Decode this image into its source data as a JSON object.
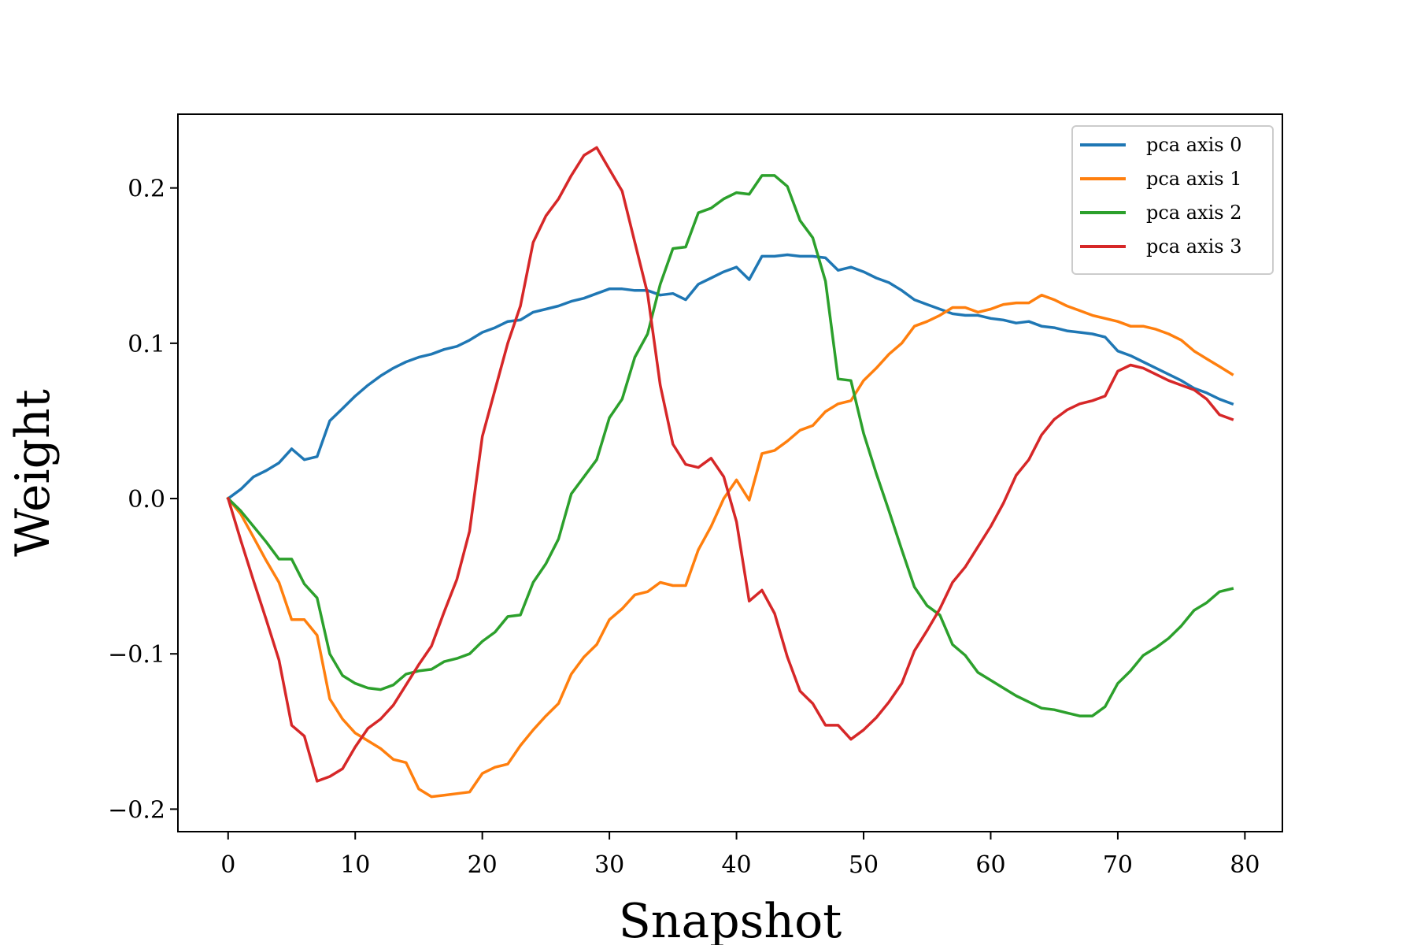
{
  "chart_data": {
    "type": "line",
    "title": "",
    "xlabel": "Snapshot",
    "ylabel": "Weight",
    "xlim": [
      -3.95,
      82.95
    ],
    "ylim": [
      -0.2145,
      0.2475
    ],
    "xticks": [
      0,
      10,
      20,
      30,
      40,
      50,
      60,
      70,
      80
    ],
    "yticks": [
      -0.2,
      -0.1,
      0.0,
      0.1,
      0.2
    ],
    "xtick_labels": [
      "0",
      "10",
      "20",
      "30",
      "40",
      "50",
      "60",
      "70",
      "80"
    ],
    "ytick_labels": [
      "−0.2",
      "−0.1",
      "0.0",
      "0.1",
      "0.2"
    ],
    "grid": false,
    "legend_position": "upper right",
    "x": [
      0,
      1,
      2,
      3,
      4,
      5,
      6,
      7,
      8,
      9,
      10,
      11,
      12,
      13,
      14,
      15,
      16,
      17,
      18,
      19,
      20,
      21,
      22,
      23,
      24,
      25,
      26,
      27,
      28,
      29,
      30,
      31,
      32,
      33,
      34,
      35,
      36,
      37,
      38,
      39,
      40,
      41,
      42,
      43,
      44,
      45,
      46,
      47,
      48,
      49,
      50,
      51,
      52,
      53,
      54,
      55,
      56,
      57,
      58,
      59,
      60,
      61,
      62,
      63,
      64,
      65,
      66,
      67,
      68,
      69,
      70,
      71,
      72,
      73,
      74,
      75,
      76,
      77,
      78,
      79
    ],
    "series": [
      {
        "name": "pca axis 0",
        "color": "#1f77b4",
        "values": [
          0.0,
          0.006,
          0.014,
          0.018,
          0.023,
          0.032,
          0.025,
          0.027,
          0.05,
          0.058,
          0.066,
          0.073,
          0.079,
          0.084,
          0.088,
          0.091,
          0.093,
          0.096,
          0.098,
          0.102,
          0.107,
          0.11,
          0.114,
          0.115,
          0.12,
          0.122,
          0.124,
          0.127,
          0.129,
          0.132,
          0.135,
          0.135,
          0.134,
          0.134,
          0.131,
          0.132,
          0.128,
          0.138,
          0.142,
          0.146,
          0.149,
          0.141,
          0.156,
          0.156,
          0.157,
          0.156,
          0.156,
          0.155,
          0.147,
          0.149,
          0.146,
          0.142,
          0.139,
          0.134,
          0.128,
          0.125,
          0.122,
          0.119,
          0.118,
          0.118,
          0.116,
          0.115,
          0.113,
          0.114,
          0.111,
          0.11,
          0.108,
          0.107,
          0.106,
          0.104,
          0.095,
          0.092,
          0.088,
          0.084,
          0.08,
          0.076,
          0.071,
          0.068,
          0.064,
          0.061
        ]
      },
      {
        "name": "pca axis 1",
        "color": "#ff7f0e",
        "values": [
          0.0,
          -0.01,
          -0.025,
          -0.04,
          -0.054,
          -0.078,
          -0.078,
          -0.088,
          -0.129,
          -0.142,
          -0.151,
          -0.156,
          -0.161,
          -0.168,
          -0.17,
          -0.187,
          -0.192,
          -0.191,
          -0.19,
          -0.189,
          -0.177,
          -0.173,
          -0.171,
          -0.159,
          -0.149,
          -0.14,
          -0.132,
          -0.113,
          -0.102,
          -0.094,
          -0.078,
          -0.071,
          -0.062,
          -0.06,
          -0.054,
          -0.056,
          -0.056,
          -0.033,
          -0.018,
          0.0,
          0.012,
          -0.001,
          0.029,
          0.031,
          0.037,
          0.044,
          0.047,
          0.056,
          0.061,
          0.063,
          0.076,
          0.084,
          0.093,
          0.1,
          0.111,
          0.114,
          0.118,
          0.123,
          0.123,
          0.12,
          0.122,
          0.125,
          0.126,
          0.126,
          0.131,
          0.128,
          0.124,
          0.121,
          0.118,
          0.116,
          0.114,
          0.111,
          0.111,
          0.109,
          0.106,
          0.102,
          0.095,
          0.09,
          0.085,
          0.08
        ]
      },
      {
        "name": "pca axis 2",
        "color": "#2ca02c",
        "values": [
          0.0,
          -0.008,
          -0.018,
          -0.028,
          -0.039,
          -0.039,
          -0.055,
          -0.064,
          -0.1,
          -0.114,
          -0.119,
          -0.122,
          -0.123,
          -0.12,
          -0.113,
          -0.111,
          -0.11,
          -0.105,
          -0.103,
          -0.1,
          -0.092,
          -0.086,
          -0.076,
          -0.075,
          -0.054,
          -0.042,
          -0.026,
          0.003,
          0.014,
          0.025,
          0.052,
          0.064,
          0.091,
          0.106,
          0.138,
          0.161,
          0.162,
          0.184,
          0.187,
          0.193,
          0.197,
          0.196,
          0.208,
          0.208,
          0.201,
          0.179,
          0.168,
          0.14,
          0.077,
          0.076,
          0.042,
          0.016,
          -0.008,
          -0.033,
          -0.057,
          -0.069,
          -0.075,
          -0.094,
          -0.101,
          -0.112,
          -0.117,
          -0.122,
          -0.127,
          -0.131,
          -0.135,
          -0.136,
          -0.138,
          -0.14,
          -0.14,
          -0.134,
          -0.119,
          -0.111,
          -0.101,
          -0.096,
          -0.09,
          -0.082,
          -0.072,
          -0.067,
          -0.06,
          -0.058
        ]
      },
      {
        "name": "pca axis 3",
        "color": "#d62728",
        "values": [
          0.0,
          -0.027,
          -0.053,
          -0.078,
          -0.104,
          -0.146,
          -0.153,
          -0.182,
          -0.179,
          -0.174,
          -0.16,
          -0.148,
          -0.142,
          -0.133,
          -0.12,
          -0.107,
          -0.095,
          -0.073,
          -0.052,
          -0.021,
          0.04,
          0.07,
          0.1,
          0.124,
          0.165,
          0.182,
          0.193,
          0.208,
          0.221,
          0.226,
          0.212,
          0.198,
          0.165,
          0.132,
          0.073,
          0.035,
          0.022,
          0.02,
          0.026,
          0.014,
          -0.015,
          -0.066,
          -0.059,
          -0.074,
          -0.102,
          -0.124,
          -0.132,
          -0.146,
          -0.146,
          -0.155,
          -0.149,
          -0.141,
          -0.131,
          -0.119,
          -0.098,
          -0.085,
          -0.071,
          -0.054,
          -0.044,
          -0.031,
          -0.018,
          -0.003,
          0.015,
          0.025,
          0.041,
          0.051,
          0.057,
          0.061,
          0.063,
          0.066,
          0.082,
          0.086,
          0.084,
          0.08,
          0.076,
          0.073,
          0.07,
          0.064,
          0.054,
          0.051
        ]
      }
    ]
  }
}
